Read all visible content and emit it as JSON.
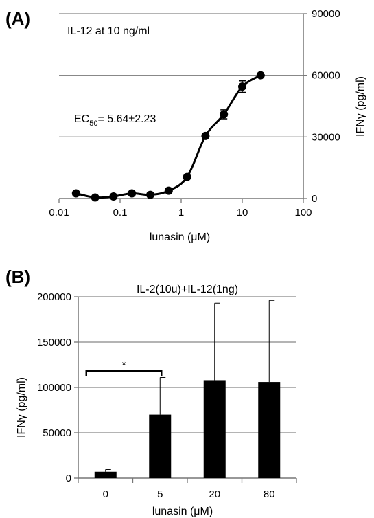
{
  "chart_data": [
    {
      "panel_label": "(A)",
      "type": "line",
      "annotations": [
        "IL-12 at 10 ng/ml"
      ],
      "ec50": {
        "prefix": "EC",
        "sub": "50",
        "value": "= 5.64±2.23"
      },
      "xlabel": "lunasin (μM)",
      "ylabel": "IFNγ (pg/ml)",
      "xscale": "log",
      "xlim": [
        0.01,
        100
      ],
      "xticks": [
        0.01,
        0.1,
        1,
        10,
        100
      ],
      "xtick_labels": [
        "0.01",
        "0.1",
        "1",
        "10",
        "100"
      ],
      "ylim": [
        0,
        90000
      ],
      "yticks": [
        0,
        30000,
        60000,
        90000
      ],
      "ytick_labels": [
        "0",
        "30000",
        "60000",
        "90000"
      ],
      "y_axis_side": "right",
      "grid": "horizontal",
      "series": [
        {
          "x": [
            0.019,
            0.039,
            0.078,
            0.156,
            0.3125,
            0.625,
            1.25,
            2.5,
            5,
            10,
            20
          ],
          "y": [
            2500,
            500,
            1000,
            2500,
            1800,
            3800,
            10500,
            30500,
            41000,
            54500,
            60000
          ],
          "err": [
            0,
            0,
            0,
            0,
            0,
            0,
            0,
            0,
            2200,
            2800,
            0
          ]
        }
      ]
    },
    {
      "panel_label": "(B)",
      "type": "bar",
      "title": "IL-2(10u)+IL-12(1ng)",
      "xlabel": "lunasin (μM)",
      "ylabel": "IFNγ (pg/ml)",
      "categories": [
        "0",
        "5",
        "20",
        "80"
      ],
      "values": [
        7000,
        70000,
        108000,
        106000
      ],
      "errors": [
        2500,
        41000,
        85000,
        90000
      ],
      "ylim": [
        0,
        200000
      ],
      "yticks": [
        0,
        50000,
        100000,
        150000,
        200000
      ],
      "ytick_labels": [
        "0",
        "50000",
        "100000",
        "150000",
        "200000"
      ],
      "grid": "horizontal",
      "significance": [
        {
          "between": [
            "0",
            "5"
          ],
          "label": "*"
        }
      ]
    }
  ]
}
